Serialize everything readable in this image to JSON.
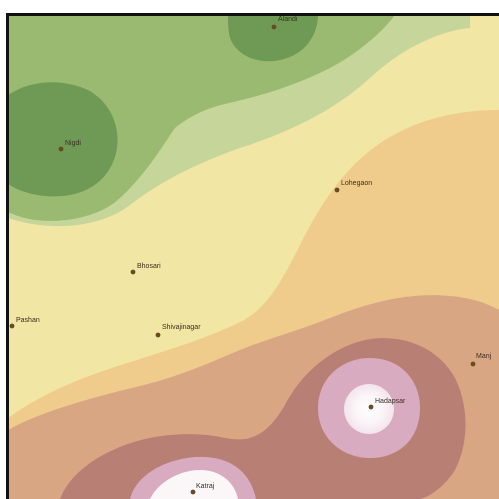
{
  "map": {
    "places": [
      {
        "id": "alandi",
        "name": "Alandi"
      },
      {
        "id": "nigdi",
        "name": "Nigdi"
      },
      {
        "id": "lohegaon",
        "name": "Lohegaon"
      },
      {
        "id": "bhosari",
        "name": "Bhosari"
      },
      {
        "id": "pashan",
        "name": "Pashan"
      },
      {
        "id": "shivajinagar",
        "name": "Shivajinagar"
      },
      {
        "id": "manjri",
        "name": "Manj"
      },
      {
        "id": "hadapsar",
        "name": "Hadapsar"
      },
      {
        "id": "katraj",
        "name": "Katraj"
      }
    ],
    "zone_colors": [
      "#6e9a56",
      "#9aba72",
      "#c6d69a",
      "#f1e6a4",
      "#f0cc8c",
      "#d9a683",
      "#b87f74",
      "#d9abc0",
      "#fbf6f8"
    ],
    "point_color": "#6a4a22",
    "frame_color": "#111111"
  }
}
